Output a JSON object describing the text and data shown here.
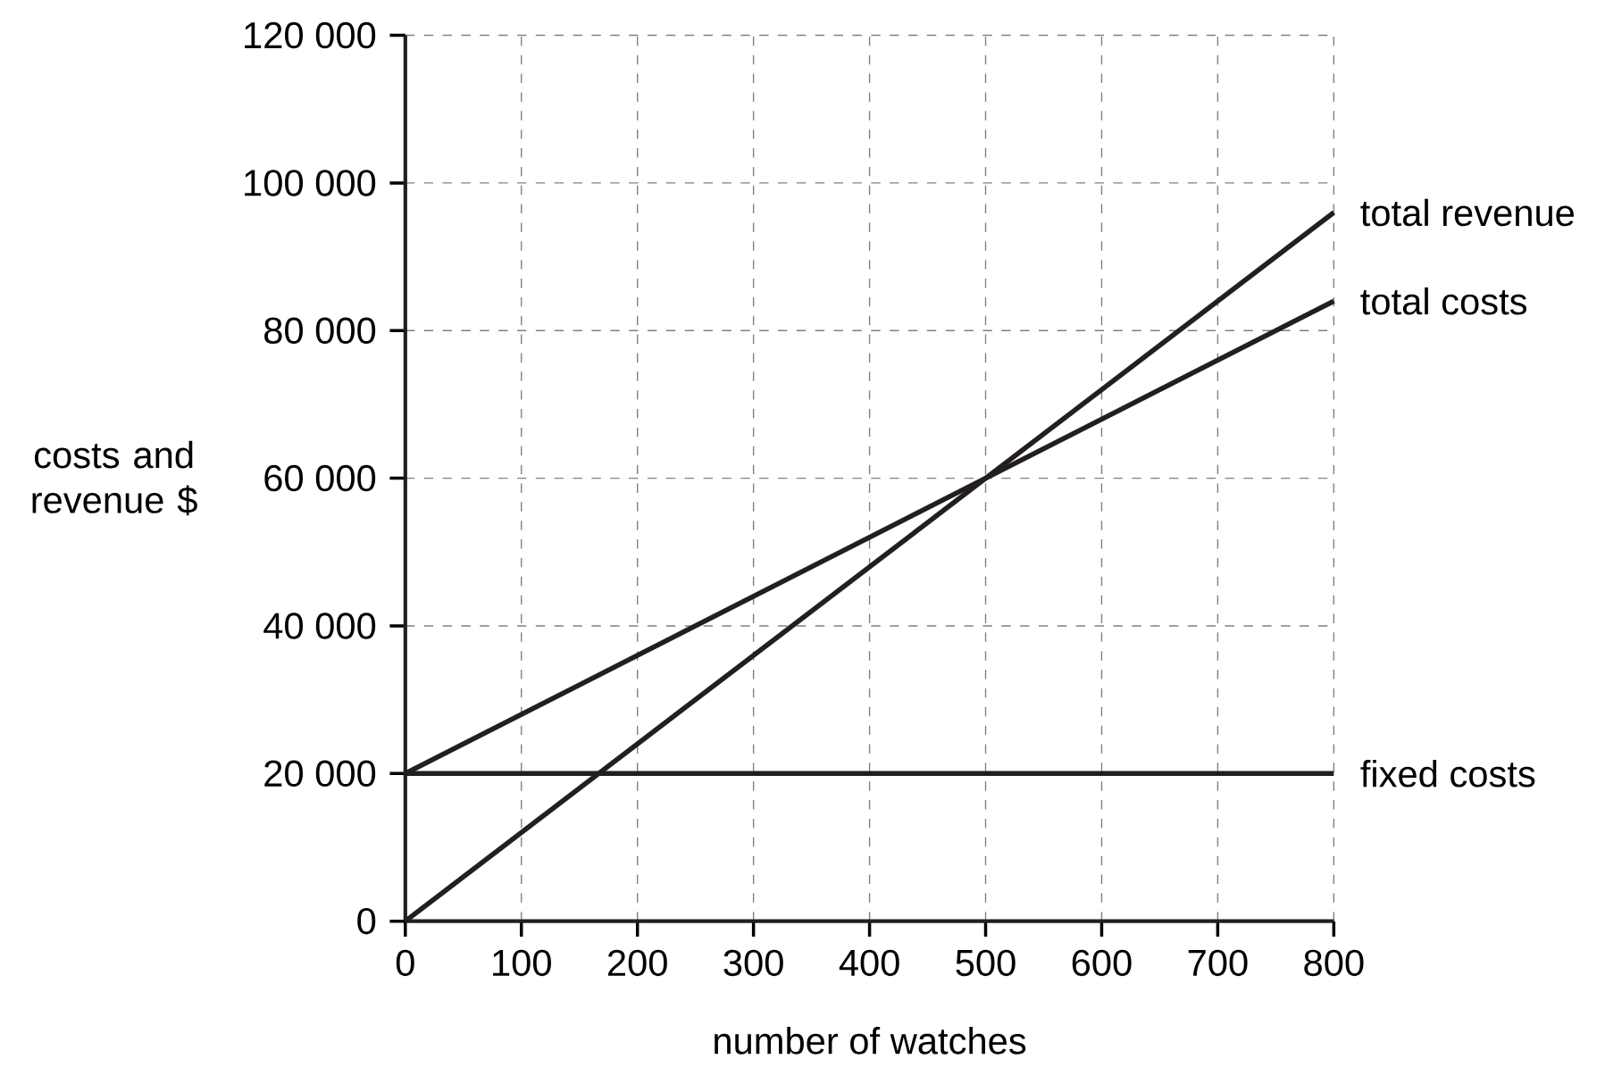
{
  "chart_data": {
    "type": "line",
    "xlabel": "number of watches",
    "ylabel": "costs and revenue $",
    "xlim": [
      0,
      800
    ],
    "xticks": [
      0,
      100,
      200,
      300,
      400,
      500,
      600,
      700,
      800
    ],
    "ylim": [
      0,
      120000
    ],
    "yticks": [
      0,
      {
        "value": 20000,
        "label": "20 000"
      },
      {
        "value": 40000,
        "label": "40 000"
      },
      {
        "value": 60000,
        "label": "60 000"
      },
      {
        "value": 80000,
        "label": "80 000"
      },
      {
        "value": 100000,
        "label": "100 000"
      },
      {
        "value": 120000,
        "label": "120 000"
      }
    ],
    "grid": true,
    "x": [
      0,
      800
    ],
    "series": [
      {
        "name": "total revenue",
        "color": "#231f20",
        "values": [
          0,
          96000
        ]
      },
      {
        "name": "total costs",
        "color": "#231f20",
        "values": [
          20000,
          84000
        ]
      },
      {
        "name": "fixed costs",
        "color": "#231f20",
        "values": [
          20000,
          20000
        ]
      }
    ]
  }
}
